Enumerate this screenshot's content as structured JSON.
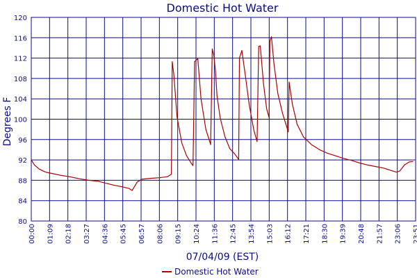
{
  "chart_data": {
    "type": "line",
    "title": "Domestic Hot Water",
    "xlabel": "07/04/09 (EST)",
    "ylabel": "Degrees F",
    "ylim": [
      80,
      120
    ],
    "yticks": [
      "80",
      "84",
      "88",
      "92",
      "96",
      "100",
      "104",
      "108",
      "112",
      "116",
      "120"
    ],
    "xticks": [
      "00:00",
      "01:09",
      "02:18",
      "03:27",
      "04:36",
      "05:45",
      "06:57",
      "08:06",
      "09:15",
      "10:24",
      "11:36",
      "12:45",
      "13:54",
      "15:03",
      "16:12",
      "17:21",
      "18:30",
      "19:39",
      "20:48",
      "21:57",
      "23:06",
      "23:51"
    ],
    "grid": true,
    "legend_position": "bottom-center",
    "colors": {
      "series": "#aa0000",
      "grid": "#0b0b8a",
      "text": "#0b0b8a"
    },
    "series": [
      {
        "name": "Domestic Hot Water",
        "points": [
          [
            0.0,
            92.0
          ],
          [
            0.2,
            91.0
          ],
          [
            0.5,
            90.2
          ],
          [
            0.9,
            89.6
          ],
          [
            1.2,
            89.4
          ],
          [
            1.8,
            89.0
          ],
          [
            2.4,
            88.7
          ],
          [
            3.0,
            88.3
          ],
          [
            3.6,
            88.0
          ],
          [
            4.2,
            87.8
          ],
          [
            4.7,
            87.4
          ],
          [
            5.2,
            87.0
          ],
          [
            5.7,
            86.7
          ],
          [
            6.1,
            86.4
          ],
          [
            6.3,
            86.0
          ],
          [
            6.6,
            87.6
          ],
          [
            6.9,
            88.2
          ],
          [
            7.5,
            88.4
          ],
          [
            8.0,
            88.5
          ],
          [
            8.5,
            88.7
          ],
          [
            8.75,
            89.2
          ],
          [
            8.8,
            111.3
          ],
          [
            8.9,
            108.8
          ],
          [
            9.1,
            100.5
          ],
          [
            9.4,
            95.3
          ],
          [
            9.7,
            92.8
          ],
          [
            10.0,
            91.3
          ],
          [
            10.1,
            90.9
          ],
          [
            10.2,
            111.3
          ],
          [
            10.4,
            111.9
          ],
          [
            10.6,
            104.0
          ],
          [
            10.9,
            98.0
          ],
          [
            11.2,
            95.0
          ],
          [
            11.3,
            113.8
          ],
          [
            11.4,
            112.5
          ],
          [
            11.5,
            109.5
          ],
          [
            11.6,
            104.5
          ],
          [
            11.8,
            100.2
          ],
          [
            12.1,
            96.5
          ],
          [
            12.4,
            94.2
          ],
          [
            12.7,
            93.2
          ],
          [
            12.95,
            92.1
          ],
          [
            13.0,
            112.0
          ],
          [
            13.15,
            113.5
          ],
          [
            13.35,
            109.0
          ],
          [
            13.6,
            103.0
          ],
          [
            13.9,
            97.8
          ],
          [
            14.1,
            95.6
          ],
          [
            14.2,
            114.3
          ],
          [
            14.3,
            114.4
          ],
          [
            14.5,
            107.0
          ],
          [
            14.7,
            102.0
          ],
          [
            14.85,
            100.3
          ],
          [
            14.9,
            115.3
          ],
          [
            15.0,
            116.2
          ],
          [
            15.15,
            111.0
          ],
          [
            15.4,
            105.0
          ],
          [
            15.7,
            101.0
          ],
          [
            15.9,
            99.0
          ],
          [
            16.05,
            97.5
          ],
          [
            16.1,
            107.3
          ],
          [
            16.3,
            103.0
          ],
          [
            16.6,
            99.0
          ],
          [
            17.0,
            96.5
          ],
          [
            17.5,
            95.0
          ],
          [
            18.0,
            94.0
          ],
          [
            18.5,
            93.3
          ],
          [
            19.0,
            92.8
          ],
          [
            19.5,
            92.3
          ],
          [
            20.0,
            91.9
          ],
          [
            20.5,
            91.4
          ],
          [
            21.0,
            91.0
          ],
          [
            21.5,
            90.7
          ],
          [
            22.0,
            90.4
          ],
          [
            22.4,
            90.0
          ],
          [
            22.8,
            89.6
          ],
          [
            23.0,
            89.8
          ],
          [
            23.3,
            91.0
          ],
          [
            23.6,
            91.6
          ],
          [
            23.85,
            91.7
          ]
        ]
      }
    ]
  }
}
